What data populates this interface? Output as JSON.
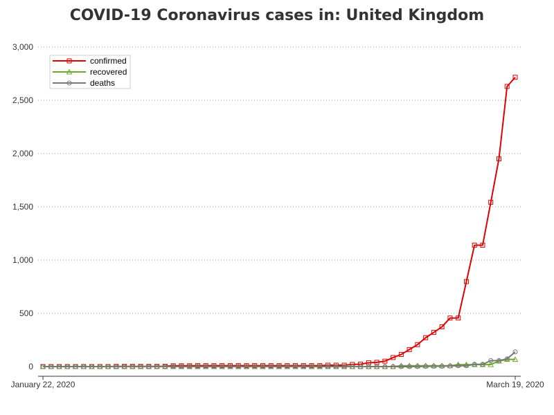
{
  "chart_data": {
    "type": "line",
    "title": "COVID-19 Coronavirus cases in: United Kingdom",
    "xlabel": "",
    "ylabel": "",
    "x_range": [
      "January 22, 2020",
      "March 19, 2020"
    ],
    "x_tick_labels": [
      "January 22, 2020",
      "March 19, 2020"
    ],
    "ylim": [
      0,
      3000
    ],
    "y_ticks": [
      0,
      500,
      1000,
      1500,
      2000,
      2500,
      3000
    ],
    "y_tick_labels": [
      "0",
      "500",
      "1,000",
      "1,500",
      "2,000",
      "2,500",
      "3,000"
    ],
    "grid": "horizontal dotted",
    "legend": "top-left",
    "series": [
      {
        "name": "confirmed",
        "color": "#e00000",
        "marker": "square",
        "values": [
          0,
          0,
          0,
          0,
          0,
          0,
          0,
          0,
          0,
          2,
          2,
          2,
          2,
          2,
          2,
          3,
          8,
          8,
          8,
          9,
          9,
          9,
          9,
          9,
          9,
          9,
          9,
          9,
          9,
          9,
          9,
          9,
          9,
          9,
          9,
          13,
          13,
          13,
          20,
          23,
          36,
          40,
          51,
          85,
          114,
          160,
          206,
          271,
          321,
          373,
          456,
          456,
          798,
          1140,
          1140,
          1543,
          1950,
          2630,
          2716
        ]
      },
      {
        "name": "recovered",
        "color": "#6aa82a",
        "marker": "triangle",
        "values": [
          0,
          0,
          0,
          0,
          0,
          0,
          0,
          0,
          0,
          0,
          0,
          0,
          0,
          0,
          0,
          0,
          0,
          0,
          0,
          0,
          0,
          0,
          0,
          0,
          0,
          0,
          0,
          0,
          0,
          0,
          0,
          0,
          0,
          0,
          0,
          0,
          0,
          0,
          0,
          0,
          0,
          0,
          0,
          0,
          8,
          8,
          8,
          8,
          8,
          8,
          8,
          18,
          18,
          19,
          19,
          19,
          52,
          67,
          67
        ]
      },
      {
        "name": "deaths",
        "color": "#777777",
        "marker": "circle",
        "values": [
          0,
          0,
          0,
          0,
          0,
          0,
          0,
          0,
          0,
          0,
          0,
          0,
          0,
          0,
          0,
          0,
          0,
          0,
          0,
          0,
          0,
          0,
          0,
          0,
          0,
          0,
          0,
          0,
          0,
          0,
          0,
          0,
          0,
          0,
          0,
          0,
          0,
          0,
          0,
          0,
          0,
          0,
          0,
          0,
          0,
          0,
          1,
          2,
          3,
          3,
          6,
          8,
          8,
          21,
          21,
          56,
          56,
          72,
          138
        ]
      }
    ]
  }
}
